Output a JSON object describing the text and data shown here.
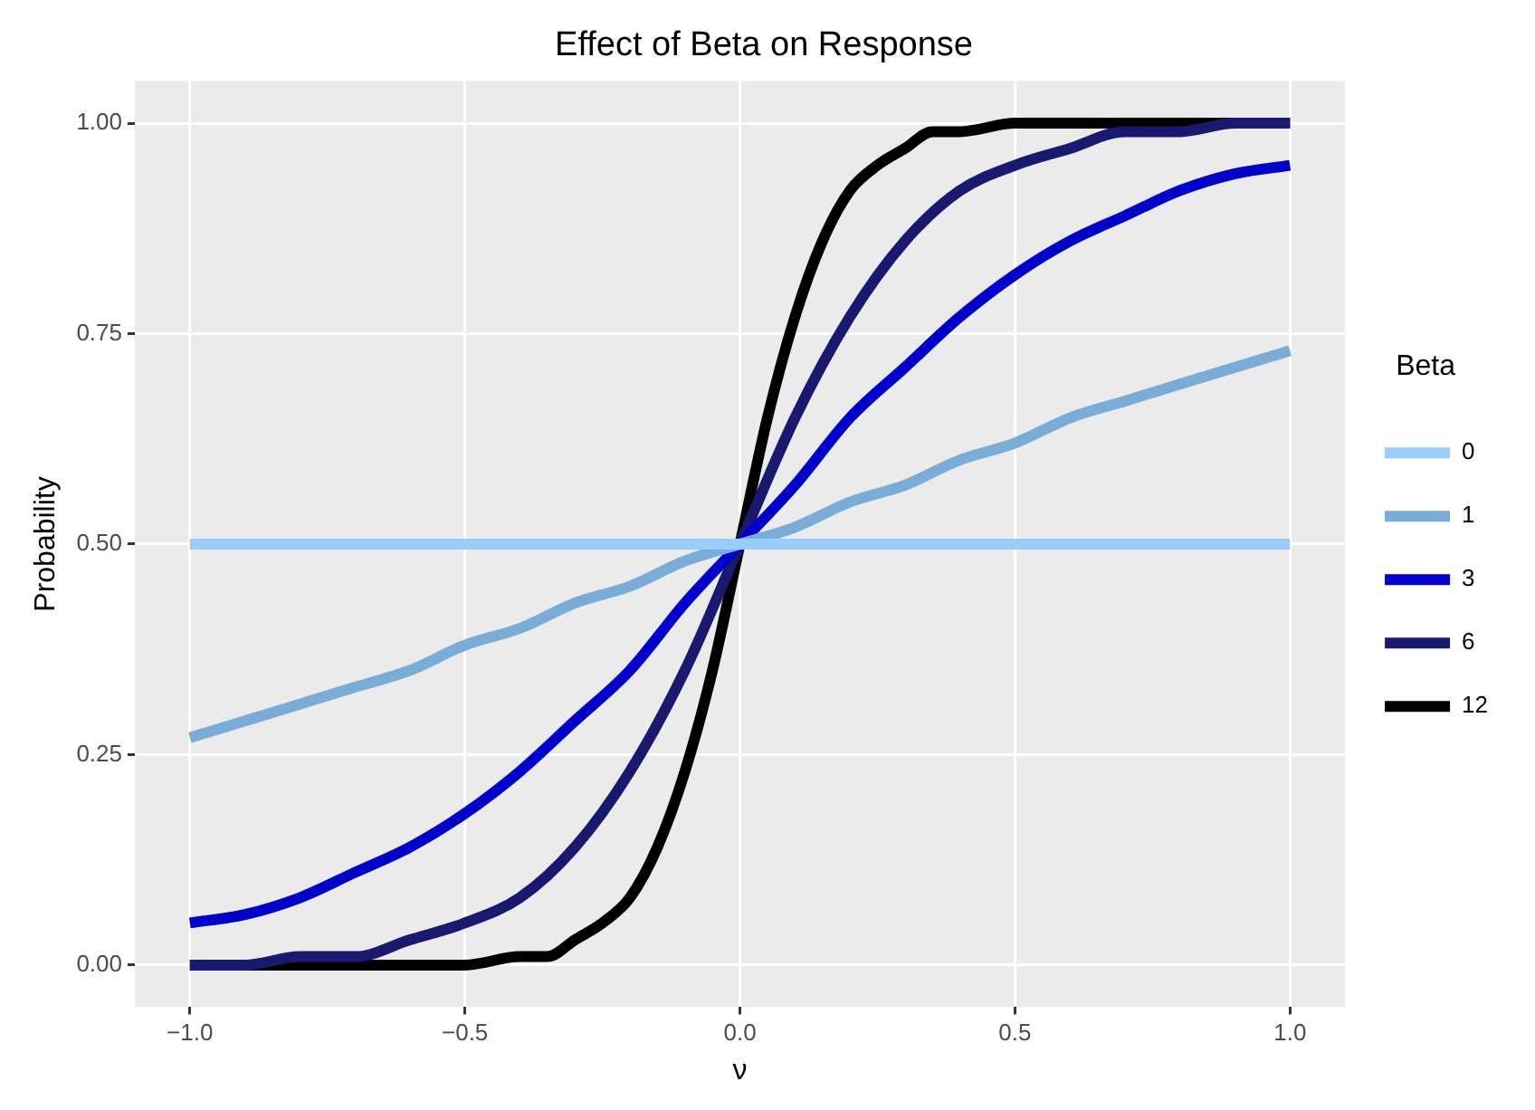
{
  "chart_data": {
    "type": "line",
    "title": "Effect of Beta on Response",
    "xlabel": "ν",
    "ylabel": "Probability",
    "legend_title": "Beta",
    "legend": "right",
    "grid": true,
    "marker": "none",
    "line_style": "solid",
    "xlim": [
      -1.1,
      1.1
    ],
    "xticks": [
      {
        "value": -1,
        "label": "−1.0"
      },
      {
        "value": -0.5,
        "label": "−0.5"
      },
      {
        "value": 0,
        "label": "0.0"
      },
      {
        "value": 0.5,
        "label": "0.5"
      },
      {
        "value": 1,
        "label": "1.0"
      }
    ],
    "ylim": [
      -0.05,
      1.05
    ],
    "yticks": [
      {
        "value": 0,
        "label": "0.00"
      },
      {
        "value": 0.25,
        "label": "0.25"
      },
      {
        "value": 0.5,
        "label": "0.50"
      },
      {
        "value": 0.75,
        "label": "0.75"
      },
      {
        "value": 1,
        "label": "1.00"
      }
    ],
    "series": [
      {
        "name": "0",
        "color": "#99ccff",
        "x": [
          -1,
          1
        ],
        "values": [
          0.5,
          0.5
        ]
      },
      {
        "name": "1",
        "color": "#79acd6",
        "x": [
          -1,
          -0.9,
          -0.8,
          -0.7,
          -0.6,
          -0.5,
          -0.4,
          -0.3,
          -0.2,
          -0.1,
          0,
          0.1,
          0.2,
          0.3,
          0.4,
          0.5,
          0.6,
          0.7,
          0.8,
          0.9,
          1
        ],
        "values": [
          0.27,
          0.29,
          0.31,
          0.33,
          0.35,
          0.38,
          0.4,
          0.43,
          0.45,
          0.48,
          0.5,
          0.52,
          0.55,
          0.57,
          0.6,
          0.62,
          0.65,
          0.67,
          0.69,
          0.71,
          0.73
        ]
      },
      {
        "name": "3",
        "color": "#0000cc",
        "x": [
          -1,
          -0.9,
          -0.8,
          -0.7,
          -0.6,
          -0.5,
          -0.4,
          -0.3,
          -0.2,
          -0.1,
          0,
          0.1,
          0.2,
          0.3,
          0.4,
          0.5,
          0.6,
          0.7,
          0.8,
          0.9,
          1
        ],
        "values": [
          0.05,
          0.06,
          0.08,
          0.11,
          0.14,
          0.18,
          0.23,
          0.29,
          0.35,
          0.43,
          0.5,
          0.57,
          0.65,
          0.71,
          0.77,
          0.82,
          0.86,
          0.89,
          0.92,
          0.94,
          0.95
        ]
      },
      {
        "name": "6",
        "color": "#191970",
        "x": [
          -1,
          -0.9,
          -0.8,
          -0.7,
          -0.6,
          -0.5,
          -0.4,
          -0.3,
          -0.2,
          -0.1,
          0,
          0.1,
          0.2,
          0.3,
          0.4,
          0.5,
          0.6,
          0.7,
          0.8,
          0.9,
          1
        ],
        "values": [
          0,
          0,
          0.01,
          0.01,
          0.03,
          0.05,
          0.08,
          0.14,
          0.23,
          0.35,
          0.5,
          0.65,
          0.77,
          0.86,
          0.92,
          0.95,
          0.97,
          0.99,
          0.99,
          1,
          1
        ]
      },
      {
        "name": "12",
        "color": "#000000",
        "x": [
          -1,
          -0.5,
          -0.4,
          -0.35,
          -0.3,
          -0.25,
          -0.2,
          -0.15,
          -0.1,
          -0.05,
          0,
          0.05,
          0.1,
          0.15,
          0.2,
          0.25,
          0.3,
          0.35,
          0.4,
          0.5,
          1
        ],
        "values": [
          0,
          0,
          0.01,
          0.01,
          0.03,
          0.05,
          0.08,
          0.14,
          0.23,
          0.35,
          0.5,
          0.65,
          0.77,
          0.86,
          0.92,
          0.95,
          0.97,
          0.99,
          0.99,
          1,
          1
        ]
      }
    ]
  }
}
